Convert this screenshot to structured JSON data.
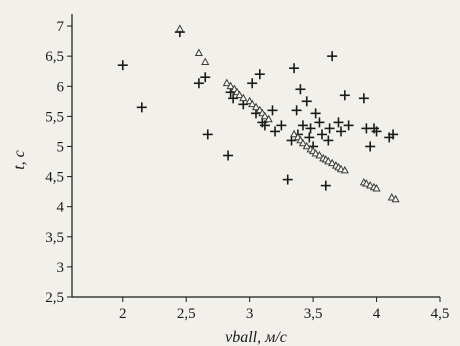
{
  "chart_data": {
    "type": "scatter",
    "xlabel": "vball, м/с",
    "ylabel": "t, с",
    "xlim": [
      1.6,
      4.5
    ],
    "ylim": [
      2.5,
      7.2
    ],
    "xticks": [
      "2",
      "2,5",
      "3",
      "3,5",
      "4",
      "4,5"
    ],
    "xtick_values": [
      2,
      2.5,
      3,
      3.5,
      4,
      4.5
    ],
    "yticks": [
      "2,5",
      "3",
      "3,5",
      "4",
      "4,5",
      "5",
      "5,5",
      "6",
      "6,5",
      "7"
    ],
    "ytick_values": [
      2.5,
      3,
      3.5,
      4,
      4.5,
      5,
      5.5,
      6,
      6.5,
      7
    ],
    "grid": false,
    "legend": "none",
    "series": [
      {
        "marker": "plus",
        "x": [
          2.0,
          2.15,
          2.45,
          2.6,
          2.65,
          2.67,
          2.83,
          2.85,
          2.87,
          2.95,
          3.02,
          3.05,
          3.08,
          3.1,
          3.12,
          3.18,
          3.2,
          3.25,
          3.3,
          3.33,
          3.35,
          3.37,
          3.38,
          3.4,
          3.42,
          3.45,
          3.47,
          3.48,
          3.5,
          3.52,
          3.55,
          3.57,
          3.6,
          3.62,
          3.63,
          3.65,
          3.7,
          3.72,
          3.75,
          3.78,
          3.9,
          3.92,
          3.95,
          3.98,
          4.0,
          4.1,
          4.13
        ],
        "y": [
          6.35,
          5.65,
          6.9,
          6.05,
          6.15,
          5.2,
          4.85,
          5.9,
          5.8,
          5.7,
          6.05,
          5.55,
          6.2,
          5.4,
          5.35,
          5.6,
          5.25,
          5.35,
          4.45,
          5.1,
          6.3,
          5.6,
          5.2,
          5.95,
          5.35,
          5.75,
          5.15,
          5.3,
          5.0,
          5.55,
          5.4,
          5.2,
          4.35,
          5.1,
          5.3,
          6.5,
          5.4,
          5.25,
          5.85,
          5.35,
          5.8,
          5.3,
          5.0,
          5.3,
          5.25,
          5.15,
          5.2
        ]
      },
      {
        "marker": "triangle",
        "x": [
          2.45,
          2.6,
          2.65,
          2.82,
          2.85,
          2.88,
          2.9,
          2.92,
          2.95,
          3.0,
          3.02,
          3.05,
          3.08,
          3.1,
          3.12,
          3.15,
          3.35,
          3.38,
          3.4,
          3.42,
          3.45,
          3.48,
          3.5,
          3.52,
          3.55,
          3.58,
          3.6,
          3.62,
          3.65,
          3.68,
          3.7,
          3.72,
          3.75,
          3.9,
          3.92,
          3.95,
          3.98,
          4.0,
          4.12,
          4.15
        ],
        "y": [
          6.95,
          6.55,
          6.4,
          6.05,
          6.0,
          5.95,
          5.9,
          5.85,
          5.8,
          5.75,
          5.7,
          5.65,
          5.6,
          5.55,
          5.5,
          5.45,
          5.2,
          5.15,
          5.1,
          5.05,
          5.0,
          4.95,
          4.92,
          4.88,
          4.85,
          4.8,
          4.78,
          4.75,
          4.72,
          4.68,
          4.65,
          4.62,
          4.6,
          4.4,
          4.38,
          4.35,
          4.32,
          4.3,
          4.15,
          4.12
        ]
      }
    ]
  }
}
